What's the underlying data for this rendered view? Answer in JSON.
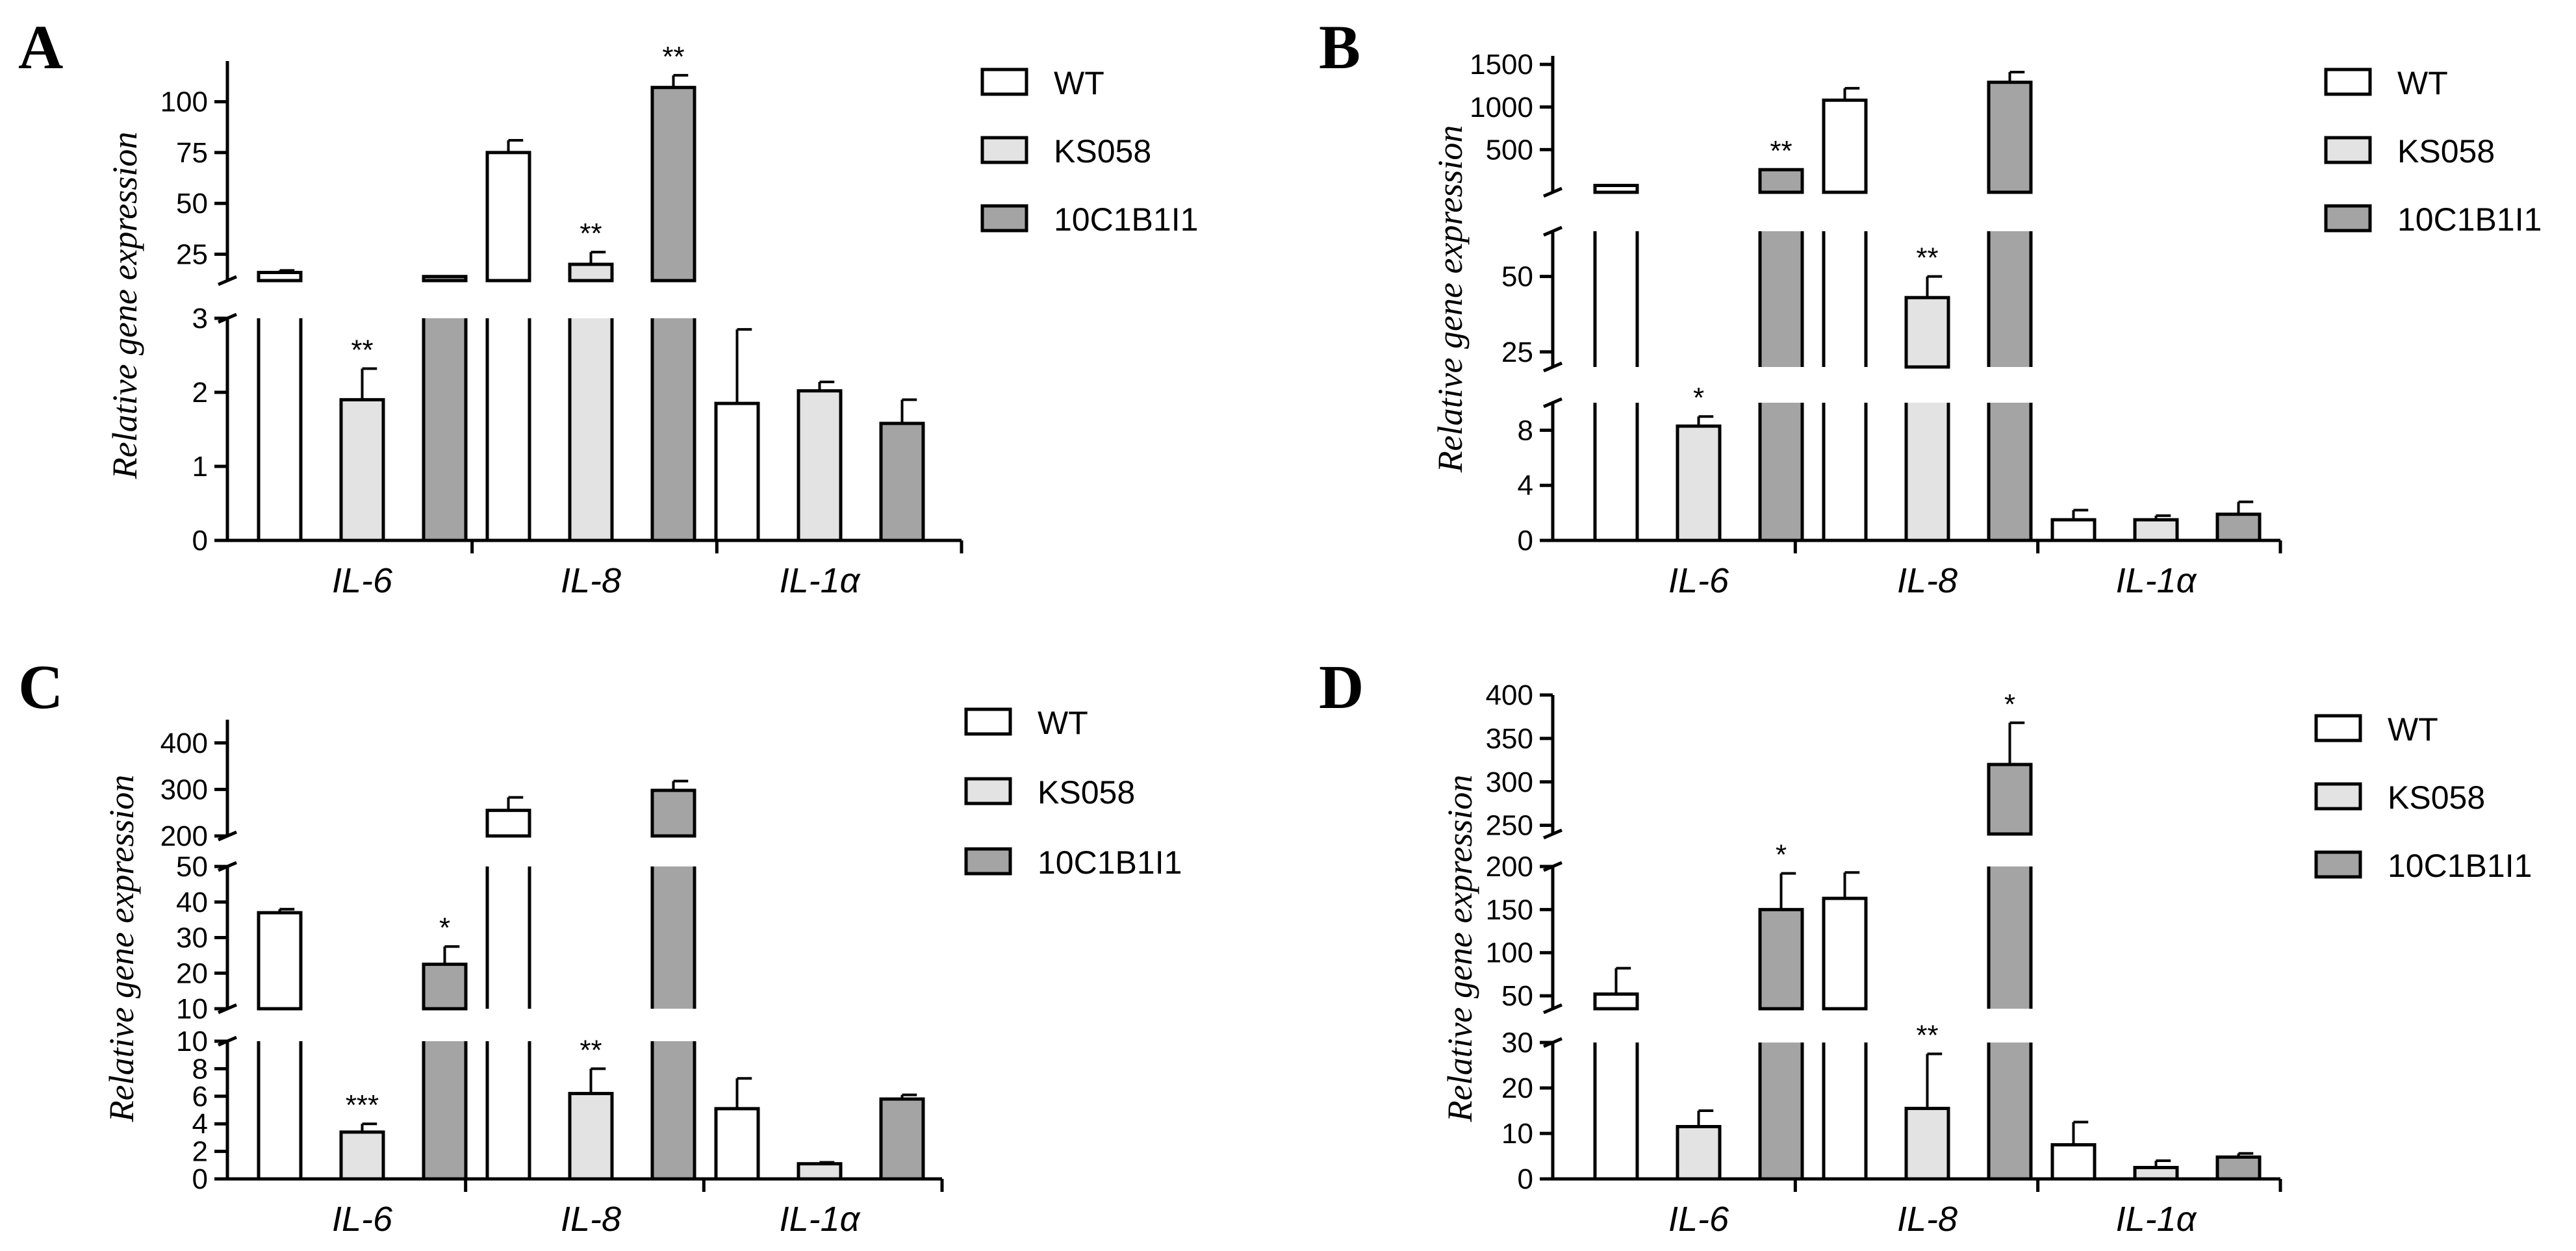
{
  "colors": {
    "WT": "#ffffff",
    "KS058": "#e3e3e3",
    "10C1B1I1": "#a4a4a4",
    "axis": "#000000"
  },
  "chart_data": [
    {
      "panel": "A",
      "type": "bar",
      "ylabel": "Relative gene expression",
      "categories": [
        "IL-6",
        "IL-8",
        "IL-1α"
      ],
      "legend": [
        "WT",
        "KS058",
        "10C1B1I1"
      ],
      "segments": [
        {
          "range": [
            0,
            3
          ],
          "ticks": [
            0,
            1,
            2,
            3
          ]
        },
        {
          "range": [
            12,
            120
          ],
          "ticks": [
            25,
            50,
            75,
            100
          ]
        }
      ],
      "series": [
        {
          "name": "WT",
          "values": [
            16,
            75,
            1.85
          ],
          "errors": [
            1,
            6,
            1
          ]
        },
        {
          "name": "KS058",
          "values": [
            1.9,
            20,
            2.02
          ],
          "errors": [
            0.42,
            6,
            0.12
          ]
        },
        {
          "name": "10C1B1I1",
          "values": [
            14,
            107,
            1.58
          ],
          "errors": [
            0,
            6,
            0.32
          ]
        }
      ],
      "significance": [
        {
          "category": "IL-6",
          "series": "KS058",
          "label": "**"
        },
        {
          "category": "IL-8",
          "series": "KS058",
          "label": "**"
        },
        {
          "category": "IL-8",
          "series": "10C1B1I1",
          "label": "**"
        }
      ]
    },
    {
      "panel": "B",
      "type": "bar",
      "ylabel": "Relative gene expression",
      "categories": [
        "IL-6",
        "IL-8",
        "IL-1α"
      ],
      "legend": [
        "WT",
        "KS058",
        "10C1B1I1"
      ],
      "segments": [
        {
          "range": [
            0,
            10
          ],
          "ticks": [
            0,
            4,
            8
          ]
        },
        {
          "range": [
            20,
            65
          ],
          "ticks": [
            25,
            50
          ]
        },
        {
          "range": [
            0,
            1600
          ],
          "ticks": [
            500,
            1000,
            1500
          ]
        }
      ],
      "series": [
        {
          "name": "WT",
          "values": [
            80,
            1080,
            1.5
          ],
          "errors": [
            0,
            140,
            0.7
          ]
        },
        {
          "name": "KS058",
          "values": [
            8.3,
            43,
            1.5
          ],
          "errors": [
            0.7,
            7,
            0.3
          ]
        },
        {
          "name": "10C1B1I1",
          "values": [
            265,
            1290,
            1.9
          ],
          "errors": [
            0,
            120,
            0.9
          ]
        }
      ],
      "significance": [
        {
          "category": "IL-6",
          "series": "KS058",
          "label": "*"
        },
        {
          "category": "IL-6",
          "series": "10C1B1I1",
          "label": "**"
        },
        {
          "category": "IL-8",
          "series": "KS058",
          "label": "**"
        }
      ]
    },
    {
      "panel": "C",
      "type": "bar",
      "ylabel": "Relative gene expression",
      "categories": [
        "IL-6",
        "IL-8",
        "IL-1α"
      ],
      "legend": [
        "WT",
        "KS058",
        "10C1B1I1"
      ],
      "segments": [
        {
          "range": [
            0,
            10
          ],
          "ticks": [
            0,
            2,
            4,
            6,
            8,
            10
          ]
        },
        {
          "range": [
            10,
            50
          ],
          "ticks": [
            10,
            20,
            30,
            40,
            50
          ]
        },
        {
          "range": [
            200,
            450
          ],
          "ticks": [
            200,
            300,
            400
          ]
        }
      ],
      "series": [
        {
          "name": "WT",
          "values": [
            37,
            255,
            5.1
          ],
          "errors": [
            1,
            28,
            2.2
          ]
        },
        {
          "name": "KS058",
          "values": [
            3.4,
            6.2,
            1.1
          ],
          "errors": [
            0.6,
            1.8,
            0.1
          ]
        },
        {
          "name": "10C1B1I1",
          "values": [
            22.5,
            298,
            5.8
          ],
          "errors": [
            5,
            20,
            0.3
          ]
        }
      ],
      "significance": [
        {
          "category": "IL-6",
          "series": "KS058",
          "label": "***"
        },
        {
          "category": "IL-6",
          "series": "10C1B1I1",
          "label": "*"
        },
        {
          "category": "IL-8",
          "series": "KS058",
          "label": "**"
        }
      ]
    },
    {
      "panel": "D",
      "type": "bar",
      "ylabel": "Relative gene expression",
      "categories": [
        "IL-6",
        "IL-8",
        "IL-1α"
      ],
      "legend": [
        "WT",
        "KS058",
        "10C1B1I1"
      ],
      "segments": [
        {
          "range": [
            0,
            30
          ],
          "ticks": [
            0,
            10,
            20,
            30
          ]
        },
        {
          "range": [
            35,
            200
          ],
          "ticks": [
            50,
            100,
            150,
            200
          ]
        },
        {
          "range": [
            240,
            400
          ],
          "ticks": [
            250,
            300,
            350,
            400
          ]
        }
      ],
      "series": [
        {
          "name": "WT",
          "values": [
            52,
            163,
            7.5
          ],
          "errors": [
            30,
            30,
            5
          ]
        },
        {
          "name": "KS058",
          "values": [
            11.5,
            15.5,
            2.5
          ],
          "errors": [
            3.5,
            12,
            1.5
          ]
        },
        {
          "name": "10C1B1I1",
          "values": [
            150,
            320,
            4.8
          ],
          "errors": [
            42,
            48,
            0.8
          ]
        }
      ],
      "significance": [
        {
          "category": "IL-6",
          "series": "10C1B1I1",
          "label": "*"
        },
        {
          "category": "IL-8",
          "series": "KS058",
          "label": "**"
        },
        {
          "category": "IL-8",
          "series": "10C1B1I1",
          "label": "*"
        }
      ]
    }
  ]
}
